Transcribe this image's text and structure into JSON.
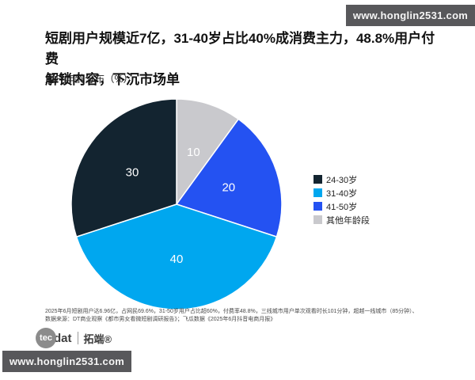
{
  "banner_top": {
    "text": "www.honglin2531.com"
  },
  "banner_bottom": {
    "text": "www.honglin2531.com"
  },
  "header": {
    "title_lines": [
      "短剧用户规模近7亿，31-40岁占比40%成消费主力，48.8%用户付费",
      "解锁内容，下沉市场单"
    ],
    "subtitle": "用户年龄分布（%）"
  },
  "chart_data": {
    "type": "pie",
    "title": "用户年龄分布（%）",
    "unit": "%",
    "start_angle_deg": 0,
    "direction": "clockwise",
    "legend_position": "right",
    "slices": [
      {
        "label": "其他年龄段",
        "value": 10,
        "color": "#c9c9cd",
        "label_color": "#ffffff"
      },
      {
        "label": "41-50岁",
        "value": 20,
        "color": "#2452f2",
        "label_color": "#ffffff"
      },
      {
        "label": "31-40岁",
        "value": 40,
        "color": "#00a7ef",
        "label_color": "#ffffff"
      },
      {
        "label": "24-30岁",
        "value": 30,
        "color": "#132430",
        "label_color": "#ffffff"
      }
    ],
    "legend": [
      {
        "label": "24-30岁",
        "color": "#132430"
      },
      {
        "label": "31-40岁",
        "color": "#00a7ef"
      },
      {
        "label": "41-50岁",
        "color": "#2452f2"
      },
      {
        "label": "其他年龄段",
        "color": "#c9c9cd"
      }
    ]
  },
  "footnotes": {
    "line1": "2025年6月短剧用户达6.96亿，占网民69.6%，31-50岁用户占比超60%，付费率48.8%，三线城市用户单次观看时长101分钟，超越一线城市（85分钟）、",
    "line2": "数据来源：DT商业观察《都市男女看微短剧调研报告》；飞瓜数据《2025年6月抖音电商月报》"
  },
  "logo": {
    "tec": "tec",
    "dat": "dat",
    "brand": "拓端®"
  }
}
